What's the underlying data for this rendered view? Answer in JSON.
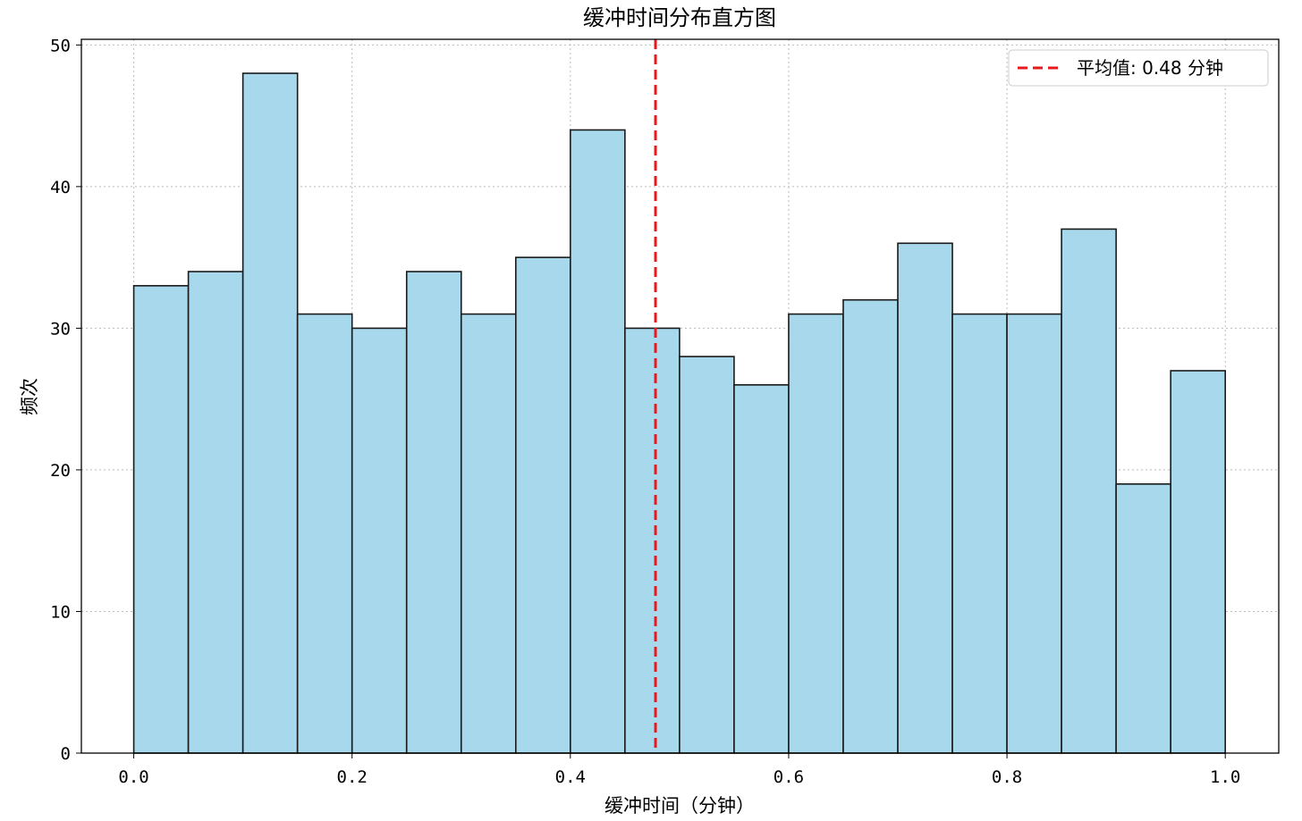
{
  "chart_data": {
    "type": "bar",
    "title": "缓冲时间分布直方图",
    "xlabel": "缓冲时间（分钟）",
    "ylabel": "频次",
    "bin_edges": [
      0.0,
      0.05,
      0.1,
      0.15,
      0.2,
      0.25,
      0.3,
      0.35,
      0.4,
      0.45,
      0.5,
      0.55,
      0.6,
      0.65,
      0.7,
      0.75,
      0.8,
      0.85,
      0.9,
      0.95,
      1.0
    ],
    "values": [
      33,
      34,
      48,
      31,
      30,
      34,
      31,
      35,
      44,
      30,
      28,
      26,
      31,
      32,
      36,
      31,
      31,
      37,
      19,
      27
    ],
    "xlim": [
      -0.048,
      1.049
    ],
    "ylim": [
      0,
      50.4
    ],
    "xticks": [
      0.0,
      0.2,
      0.4,
      0.6,
      0.8,
      1.0
    ],
    "xtick_labels": [
      "0.0",
      "0.2",
      "0.4",
      "0.6",
      "0.8",
      "1.0"
    ],
    "yticks": [
      0,
      10,
      20,
      30,
      40,
      50
    ],
    "ytick_labels": [
      "0",
      "10",
      "20",
      "30",
      "40",
      "50"
    ],
    "grid": true,
    "bar_color": "#a8d8ec",
    "edge_color": "#1a1a1a",
    "mean_line": {
      "value": 0.478,
      "color": "#e8191c",
      "label": "平均值: 0.48 分钟"
    },
    "legend_placement": "top-right"
  }
}
